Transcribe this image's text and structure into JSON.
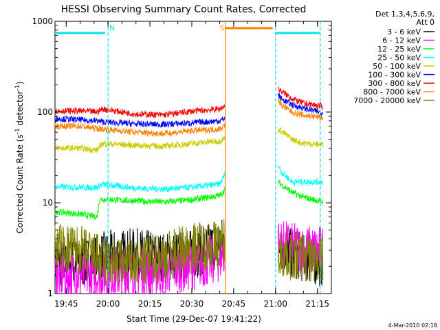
{
  "chart_data": {
    "type": "line",
    "title": "HESSI Observing Summary Count Rates, Corrected",
    "xlabel": "Start Time (29-Dec-07 19:41:22)",
    "ylabel_prefix": "Corrected Count Rate (s",
    "ylabel_sup1": "-1",
    "ylabel_mid": " detector",
    "ylabel_sup2": "-1",
    "ylabel_suffix": ")",
    "y_scale": "log",
    "ylim": [
      1,
      1000
    ],
    "xlim": [
      "19:41",
      "21:20"
    ],
    "xticks": [
      "19:45",
      "20:00",
      "20:15",
      "20:30",
      "20:45",
      "21:00",
      "21:15"
    ],
    "yticks": [
      "1",
      "10",
      "100",
      "1000"
    ],
    "legend_header": [
      "Det 1,3,4,5,6,9,",
      "Att 0"
    ],
    "legend_position": "right",
    "footer": "4-Mar-2010 02:18",
    "flags": [
      {
        "label": "N",
        "color": "#00e5e5",
        "start": "19:41",
        "end": "19:59"
      },
      {
        "label": "S",
        "color": "#ff8000",
        "start": "20:42",
        "end": "20:59"
      },
      {
        "label": "",
        "color": "#00e5e5",
        "start": "21:00",
        "end": "21:16"
      }
    ],
    "shading": [
      {
        "color": "#00e5e5",
        "boundaries": [
          "20:00",
          "21:00",
          "21:16"
        ]
      },
      {
        "color": "#ff8000",
        "boundaries": [
          "20:42"
        ]
      }
    ],
    "data_gap": [
      "20:42",
      "21:01"
    ],
    "series": [
      {
        "name": "3 - 6 keV",
        "color": "#000000",
        "values": [
          [
            "19:41",
            2.2
          ],
          [
            "19:50",
            2.1
          ],
          [
            "19:59",
            2.6
          ],
          [
            "20:10",
            2.8
          ],
          [
            "20:20",
            2.5
          ],
          [
            "20:30",
            2.7
          ],
          [
            "20:40",
            3.5
          ],
          [
            "20:42",
            4.0
          ],
          [
            "21:01",
            3.5
          ],
          [
            "21:05",
            2.8
          ],
          [
            "21:10",
            2.5
          ],
          [
            "21:17",
            2.2
          ]
        ]
      },
      {
        "name": "6 - 12 keV",
        "color": "#ff00ff",
        "values": [
          [
            "19:41",
            1.6
          ],
          [
            "19:50",
            1.6
          ],
          [
            "19:59",
            1.6
          ],
          [
            "20:10",
            1.7
          ],
          [
            "20:20",
            1.8
          ],
          [
            "20:30",
            2.0
          ],
          [
            "20:40",
            2.5
          ],
          [
            "20:42",
            3.0
          ],
          [
            "21:01",
            3.5
          ],
          [
            "21:05",
            3.3
          ],
          [
            "21:10",
            3.0
          ],
          [
            "21:17",
            3.0
          ]
        ]
      },
      {
        "name": "12 - 25 keV",
        "color": "#00ff00",
        "values": [
          [
            "19:41",
            8.0
          ],
          [
            "19:50",
            7.5
          ],
          [
            "19:56",
            7.0
          ],
          [
            "19:57",
            11.0
          ],
          [
            "20:10",
            10.5
          ],
          [
            "20:20",
            10.2
          ],
          [
            "20:30",
            10.8
          ],
          [
            "20:40",
            12.0
          ],
          [
            "20:42",
            14.0
          ],
          [
            "21:01",
            17.0
          ],
          [
            "21:02",
            16.0
          ],
          [
            "21:06",
            13.0
          ],
          [
            "21:10",
            11.5
          ],
          [
            "21:17",
            10.2
          ]
        ]
      },
      {
        "name": "25 - 50 keV",
        "color": "#00ffff",
        "values": [
          [
            "19:41",
            15.0
          ],
          [
            "19:50",
            14.8
          ],
          [
            "19:56",
            14.8
          ],
          [
            "19:58",
            16.0
          ],
          [
            "20:10",
            14.5
          ],
          [
            "20:20",
            14.2
          ],
          [
            "20:30",
            14.8
          ],
          [
            "20:40",
            16.0
          ],
          [
            "20:42",
            21.0
          ],
          [
            "21:01",
            26.0
          ],
          [
            "21:02",
            22.0
          ],
          [
            "21:06",
            17.0
          ],
          [
            "21:10",
            17.0
          ],
          [
            "21:17",
            17.0
          ]
        ]
      },
      {
        "name": "50 - 100 keV",
        "color": "#cccc00",
        "values": [
          [
            "19:41",
            40.0
          ],
          [
            "19:50",
            40.0
          ],
          [
            "19:56",
            38.0
          ],
          [
            "19:58",
            45.0
          ],
          [
            "20:10",
            43.0
          ],
          [
            "20:20",
            42.0
          ],
          [
            "20:30",
            45.0
          ],
          [
            "20:40",
            48.0
          ],
          [
            "20:42",
            52.0
          ],
          [
            "21:01",
            65.0
          ],
          [
            "21:02",
            62.0
          ],
          [
            "21:06",
            50.0
          ],
          [
            "21:10",
            45.0
          ],
          [
            "21:17",
            44.0
          ]
        ]
      },
      {
        "name": "100 - 300 keV",
        "color": "#0000ff",
        "values": [
          [
            "19:41",
            85.0
          ],
          [
            "19:50",
            82.0
          ],
          [
            "19:56",
            80.0
          ],
          [
            "19:58",
            78.0
          ],
          [
            "20:10",
            74.0
          ],
          [
            "20:20",
            73.0
          ],
          [
            "20:30",
            76.0
          ],
          [
            "20:40",
            80.0
          ],
          [
            "20:42",
            86.0
          ],
          [
            "21:01",
            155.0
          ],
          [
            "21:02",
            140.0
          ],
          [
            "21:06",
            120.0
          ],
          [
            "21:10",
            110.0
          ],
          [
            "21:17",
            98.0
          ]
        ]
      },
      {
        "name": "300 - 800 keV",
        "color": "#ff0000",
        "values": [
          [
            "19:41",
            103.0
          ],
          [
            "19:50",
            103.0
          ],
          [
            "19:56",
            100.0
          ],
          [
            "19:58",
            108.0
          ],
          [
            "20:10",
            95.0
          ],
          [
            "20:20",
            93.0
          ],
          [
            "20:30",
            102.0
          ],
          [
            "20:40",
            108.0
          ],
          [
            "20:42",
            118.0
          ],
          [
            "21:01",
            180.0
          ],
          [
            "21:02",
            170.0
          ],
          [
            "21:06",
            140.0
          ],
          [
            "21:10",
            125.0
          ],
          [
            "21:17",
            115.0
          ]
        ]
      },
      {
        "name": "800 - 7000 keV",
        "color": "#ff8000",
        "values": [
          [
            "19:41",
            70.0
          ],
          [
            "19:50",
            70.0
          ],
          [
            "19:56",
            66.0
          ],
          [
            "19:58",
            65.0
          ],
          [
            "20:10",
            60.0
          ],
          [
            "20:20",
            58.0
          ],
          [
            "20:30",
            62.0
          ],
          [
            "20:40",
            65.0
          ],
          [
            "20:42",
            72.0
          ],
          [
            "21:01",
            135.0
          ],
          [
            "21:02",
            120.0
          ],
          [
            "21:06",
            100.0
          ],
          [
            "21:10",
            92.0
          ],
          [
            "21:17",
            87.0
          ]
        ]
      },
      {
        "name": "7000 - 20000 keV",
        "color": "#808000",
        "values": [
          [
            "19:41",
            3.2
          ],
          [
            "19:50",
            3.0
          ],
          [
            "19:56",
            2.5
          ],
          [
            "19:58",
            2.2
          ],
          [
            "20:10",
            2.1
          ],
          [
            "20:20",
            2.6
          ],
          [
            "20:30",
            3.3
          ],
          [
            "20:40",
            3.5
          ],
          [
            "20:42",
            4.0
          ],
          [
            "21:01",
            2.8
          ],
          [
            "21:06",
            2.6
          ],
          [
            "21:10",
            2.5
          ],
          [
            "21:17",
            2.4
          ]
        ]
      }
    ]
  }
}
